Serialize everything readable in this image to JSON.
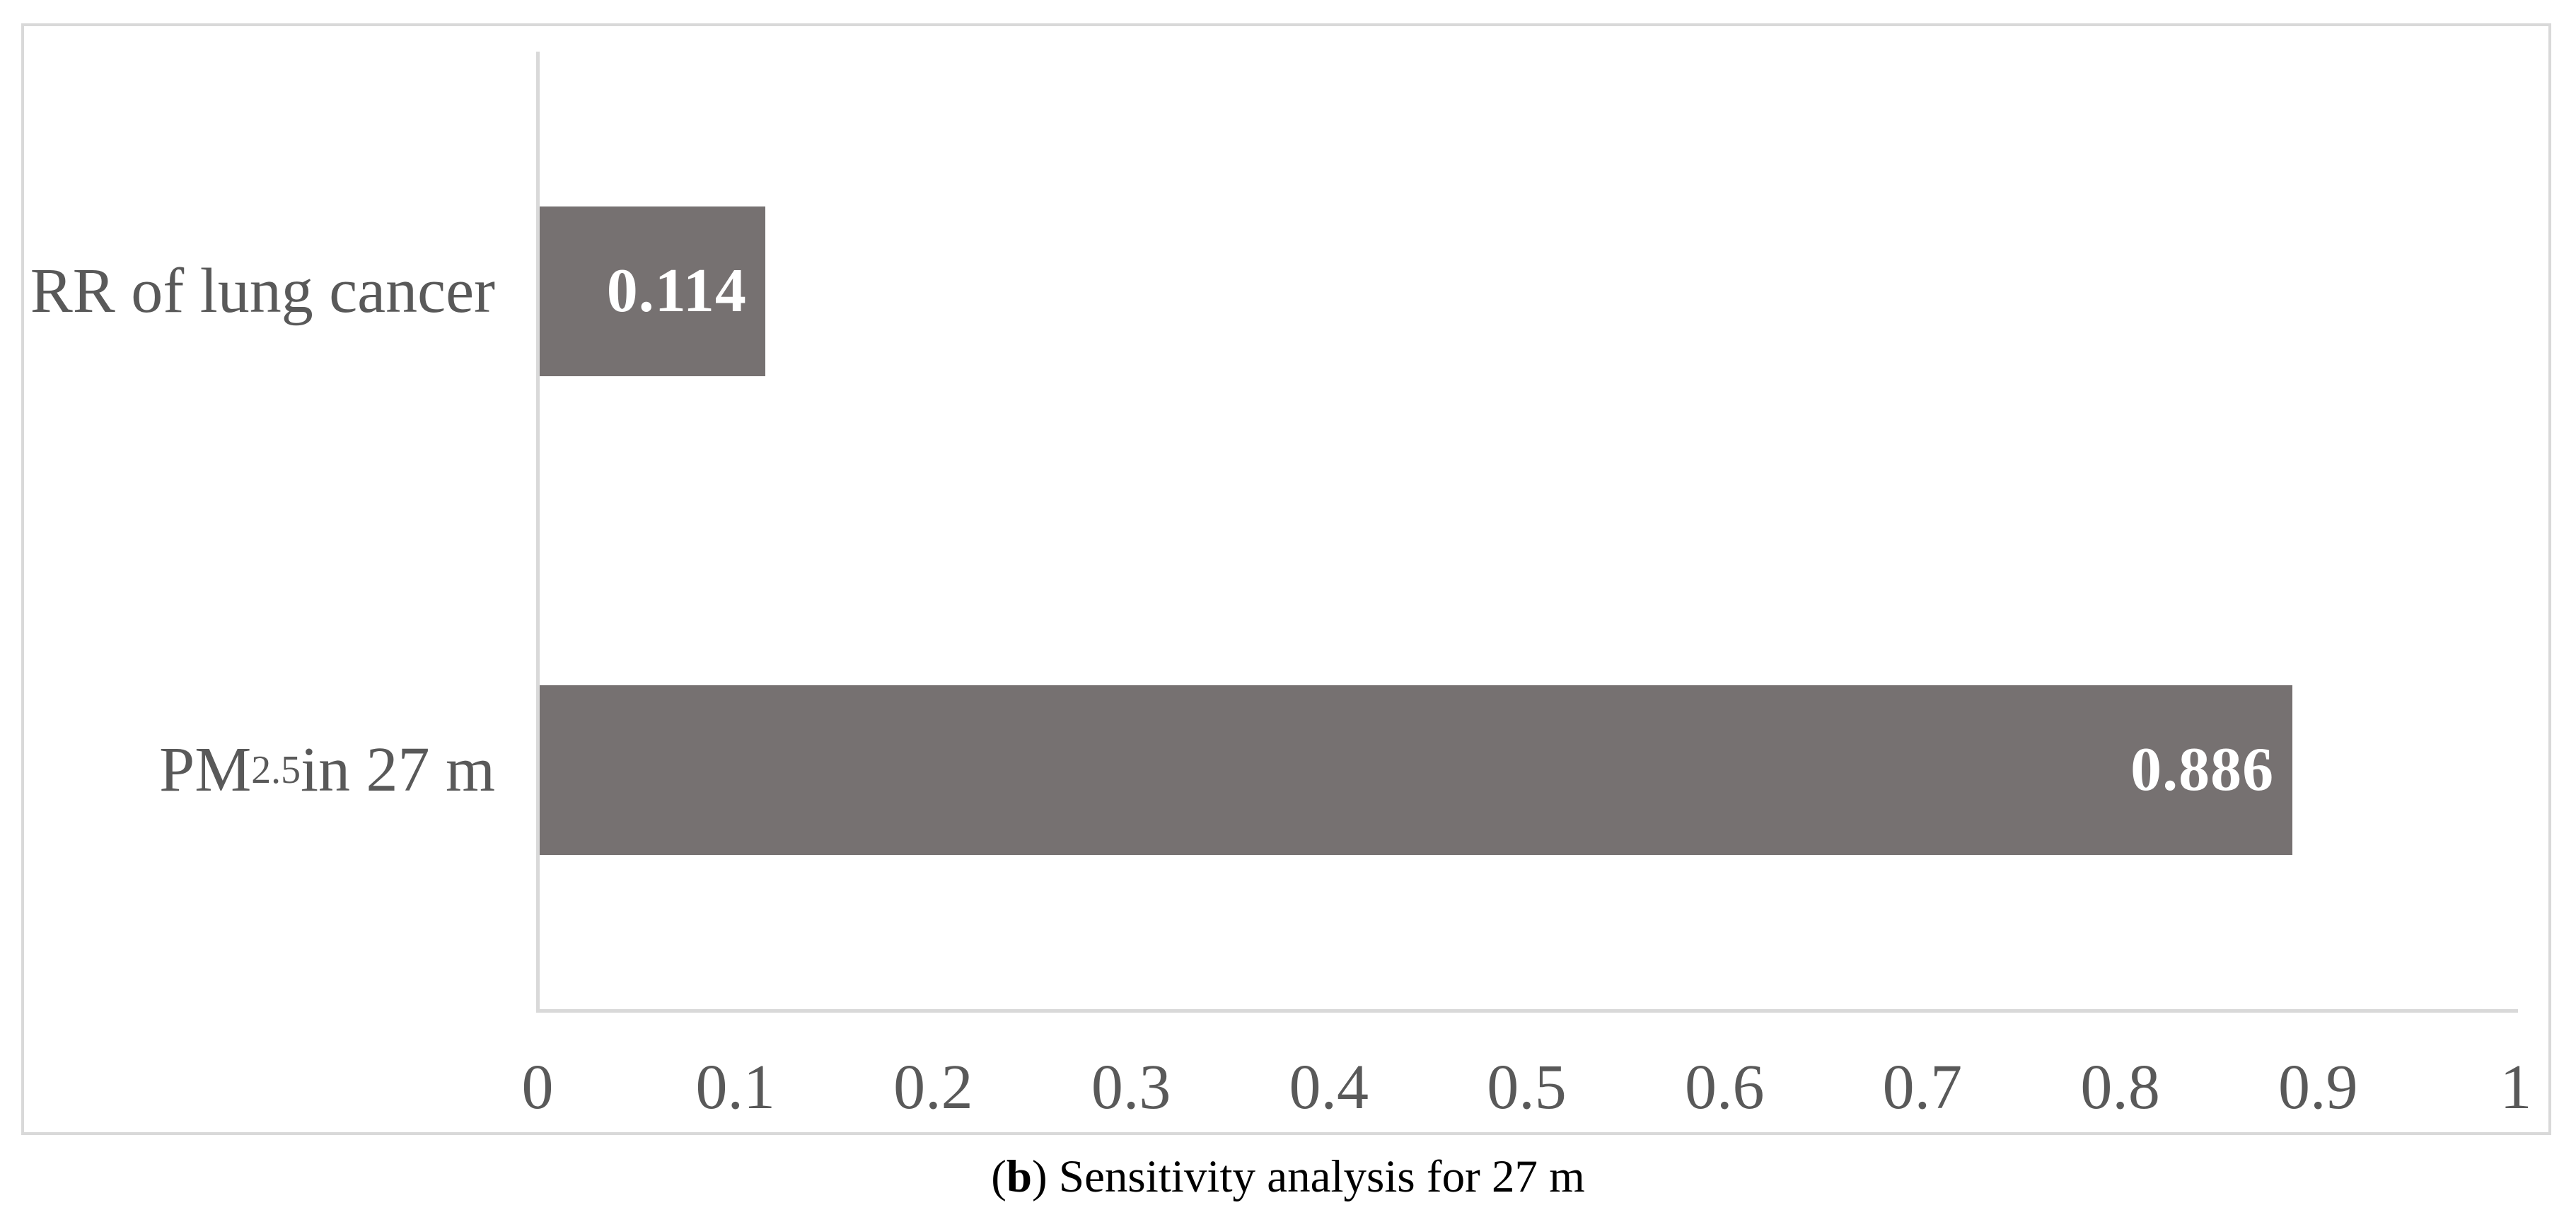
{
  "figure": {
    "caption": {
      "prefix": "(",
      "bold": "b",
      "suffix": ") Sensitivity analysis for 27 m"
    }
  },
  "chart_data": {
    "type": "bar",
    "orientation": "horizontal",
    "title": "",
    "categories": [
      "RR of lung cancer",
      "PM2.5 in 27 m"
    ],
    "categories_rich": [
      {
        "parts": [
          {
            "text": "RR of lung cancer",
            "sub": false
          }
        ]
      },
      {
        "parts": [
          {
            "text": "PM",
            "sub": false
          },
          {
            "text": "2.5",
            "sub": true
          },
          {
            "text": " in 27 m",
            "sub": false
          }
        ]
      }
    ],
    "values": [
      0.114,
      0.886
    ],
    "data_labels": [
      "0.114",
      "0.886"
    ],
    "xlabel": "",
    "ylabel": "",
    "xlim": [
      0,
      1
    ],
    "x_ticks": [
      0,
      0.1,
      0.2,
      0.3,
      0.4,
      0.5,
      0.6,
      0.7,
      0.8,
      0.9,
      1
    ],
    "x_tick_labels": [
      "0",
      "0.1",
      "0.2",
      "0.3",
      "0.4",
      "0.5",
      "0.6",
      "0.7",
      "0.8",
      "0.9",
      "1"
    ],
    "grid": false,
    "legend": false,
    "data_label_position": "inside-end",
    "colors": {
      "bar": "#767171",
      "axis_line": "#d9d9d9",
      "figure_border": "#d9d9d9",
      "tick_text": "#595959",
      "category_text": "#595959",
      "value_label_text": "#ffffff",
      "caption_text": "#000000",
      "background": "#ffffff"
    }
  }
}
